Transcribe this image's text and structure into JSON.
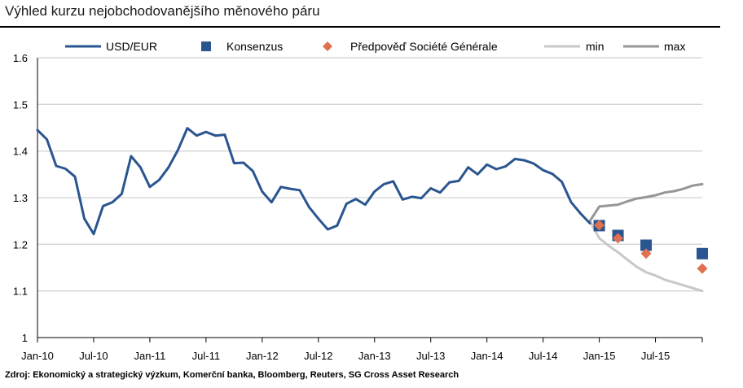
{
  "chart_data": {
    "type": "line",
    "title": "Výhled kurzu nejobchodovanějšího měnového páru",
    "source": "Zdroj: Ekonomický a strategický výzkum, Komerční banka, Bloomberg, Reuters, SG Cross Asset Research",
    "xlabel": "",
    "ylabel": "",
    "x_ticks": [
      "Jan-10",
      "Jul-10",
      "Jan-11",
      "Jul-11",
      "Jan-12",
      "Jul-12",
      "Jan-13",
      "Jul-13",
      "Jan-14",
      "Jul-14",
      "Jan-15",
      "Jul-15"
    ],
    "y_ticks": [
      "1",
      "1.1",
      "1.2",
      "1.3",
      "1.4",
      "1.5",
      "1.6"
    ],
    "ylim": [
      1.0,
      1.6
    ],
    "xlim": [
      "Jan-10",
      "Dec-15"
    ],
    "grid": "horizontal",
    "legend": "top",
    "colors": {
      "usd_eur": "#2a5590",
      "konsenzus": "#2a5590",
      "sg_forecast": "#e07050",
      "min": "#c8c8c8",
      "max": "#969696",
      "grid": "#d4d4d4"
    },
    "series": [
      {
        "name": "USD/EUR",
        "kind": "line",
        "points": [
          [
            "Jan-10",
            1.445
          ],
          [
            "Feb-10",
            1.425
          ],
          [
            "Mar-10",
            1.368
          ],
          [
            "Apr-10",
            1.362
          ],
          [
            "May-10",
            1.345
          ],
          [
            "Jun-10",
            1.255
          ],
          [
            "Jul-10",
            1.222
          ],
          [
            "Aug-10",
            1.282
          ],
          [
            "Sep-10",
            1.29
          ],
          [
            "Oct-10",
            1.308
          ],
          [
            "Nov-10",
            1.389
          ],
          [
            "Dec-10",
            1.365
          ],
          [
            "Jan-11",
            1.323
          ],
          [
            "Feb-11",
            1.338
          ],
          [
            "Mar-11",
            1.365
          ],
          [
            "Apr-11",
            1.402
          ],
          [
            "May-11",
            1.449
          ],
          [
            "Jun-11",
            1.433
          ],
          [
            "Jul-11",
            1.441
          ],
          [
            "Aug-11",
            1.433
          ],
          [
            "Sep-11",
            1.435
          ],
          [
            "Oct-11",
            1.374
          ],
          [
            "Nov-11",
            1.375
          ],
          [
            "Dec-11",
            1.357
          ],
          [
            "Jan-12",
            1.313
          ],
          [
            "Feb-12",
            1.29
          ],
          [
            "Mar-12",
            1.323
          ],
          [
            "Apr-12",
            1.319
          ],
          [
            "May-12",
            1.316
          ],
          [
            "Jun-12",
            1.28
          ],
          [
            "Jul-12",
            1.255
          ],
          [
            "Aug-12",
            1.232
          ],
          [
            "Sep-12",
            1.24
          ],
          [
            "Oct-12",
            1.287
          ],
          [
            "Nov-12",
            1.297
          ],
          [
            "Dec-12",
            1.285
          ],
          [
            "Jan-13",
            1.313
          ],
          [
            "Feb-13",
            1.329
          ],
          [
            "Mar-13",
            1.335
          ],
          [
            "Apr-13",
            1.296
          ],
          [
            "May-13",
            1.302
          ],
          [
            "Jun-13",
            1.299
          ],
          [
            "Jul-13",
            1.32
          ],
          [
            "Aug-13",
            1.311
          ],
          [
            "Sep-13",
            1.333
          ],
          [
            "Oct-13",
            1.336
          ],
          [
            "Nov-13",
            1.365
          ],
          [
            "Dec-13",
            1.35
          ],
          [
            "Jan-14",
            1.371
          ],
          [
            "Feb-14",
            1.361
          ],
          [
            "Mar-14",
            1.367
          ],
          [
            "Apr-14",
            1.383
          ],
          [
            "May-14",
            1.38
          ],
          [
            "Jun-14",
            1.373
          ],
          [
            "Jul-14",
            1.359
          ],
          [
            "Aug-14",
            1.351
          ],
          [
            "Sep-14",
            1.334
          ],
          [
            "Oct-14",
            1.29
          ],
          [
            "Nov-14",
            1.266
          ],
          [
            "Dec-14",
            1.245
          ]
        ]
      },
      {
        "name": "Konsenzus",
        "kind": "square",
        "points": [
          [
            "Jan-15",
            1.24
          ],
          [
            "Mar-15",
            1.219
          ],
          [
            "Jun-15",
            1.198
          ],
          [
            "Dec-15",
            1.18
          ]
        ]
      },
      {
        "name": "Předpověď Société Générale",
        "kind": "diamond",
        "points": [
          [
            "Jan-15",
            1.241
          ],
          [
            "Mar-15",
            1.213
          ],
          [
            "Jun-15",
            1.18
          ],
          [
            "Dec-15",
            1.148
          ]
        ]
      },
      {
        "name": "min",
        "kind": "line",
        "points": [
          [
            "Dec-14",
            1.25
          ],
          [
            "Jan-15",
            1.213
          ],
          [
            "Feb-15",
            1.197
          ],
          [
            "Mar-15",
            1.183
          ],
          [
            "Apr-15",
            1.167
          ],
          [
            "May-15",
            1.152
          ],
          [
            "Jun-15",
            1.14
          ],
          [
            "Jul-15",
            1.133
          ],
          [
            "Aug-15",
            1.124
          ],
          [
            "Sep-15",
            1.118
          ],
          [
            "Oct-15",
            1.112
          ],
          [
            "Nov-15",
            1.106
          ],
          [
            "Dec-15",
            1.1
          ]
        ]
      },
      {
        "name": "max",
        "kind": "line",
        "points": [
          [
            "Dec-14",
            1.25
          ],
          [
            "Jan-15",
            1.281
          ],
          [
            "Feb-15",
            1.283
          ],
          [
            "Mar-15",
            1.285
          ],
          [
            "Apr-15",
            1.292
          ],
          [
            "May-15",
            1.298
          ],
          [
            "Jun-15",
            1.301
          ],
          [
            "Jul-15",
            1.305
          ],
          [
            "Aug-15",
            1.311
          ],
          [
            "Sep-15",
            1.314
          ],
          [
            "Oct-15",
            1.319
          ],
          [
            "Nov-15",
            1.326
          ],
          [
            "Dec-15",
            1.329
          ]
        ]
      }
    ]
  }
}
